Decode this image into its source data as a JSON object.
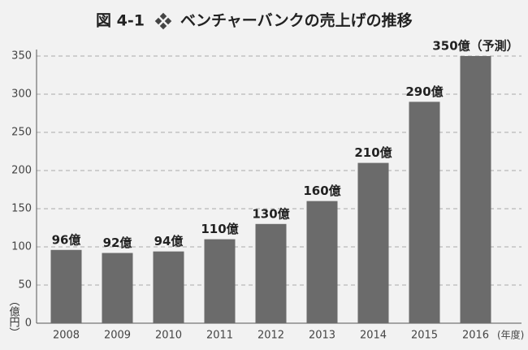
{
  "chart_data": {
    "type": "bar",
    "title_number": "図 4-1",
    "title": "ベンチャーバンクの売上げの推移",
    "y_label": "（億円）",
    "x_label": "(年度)",
    "categories": [
      "2008",
      "2009",
      "2010",
      "2011",
      "2012",
      "2013",
      "2014",
      "2015",
      "2016"
    ],
    "values": [
      96,
      92,
      94,
      110,
      130,
      160,
      210,
      290,
      350
    ],
    "value_labels": [
      "96億",
      "92億",
      "94億",
      "110億",
      "130億",
      "160億",
      "210億",
      "290億",
      "350億（予測）"
    ],
    "color": "#6b6b6b",
    "ylim": [
      0,
      350
    ],
    "yticks": [
      0,
      50,
      100,
      150,
      200,
      250,
      300,
      350
    ],
    "grid": true
  }
}
